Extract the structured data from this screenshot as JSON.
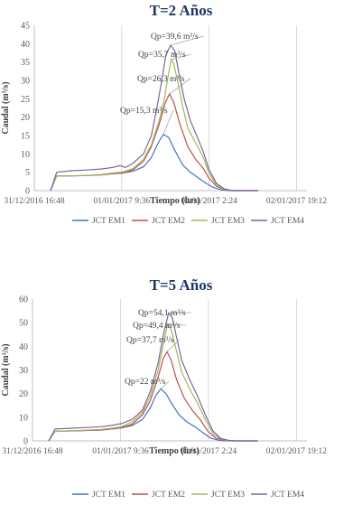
{
  "chart_data": [
    {
      "type": "line",
      "title": "T=2 Años",
      "xlabel": "Tiempo (hrs)",
      "ylabel": "Caudal (m³/s)",
      "ylim": [
        0,
        45
      ],
      "yticks": [
        0,
        5,
        10,
        15,
        20,
        25,
        30,
        35,
        40,
        45
      ],
      "xlim": [
        0,
        52.4
      ],
      "xticks": [
        {
          "x": 0,
          "label": "31/12/2016 16:48"
        },
        {
          "x": 16.8,
          "label": "01/01/2017 9:36"
        },
        {
          "x": 33.6,
          "label": "02/01/2017 2:24"
        },
        {
          "x": 50.4,
          "label": "02/01/2017 19:12"
        }
      ],
      "legend_position": "bottom",
      "grid": "vertical",
      "series": [
        {
          "name": "JCT EM1",
          "color": "#4472C4",
          "points": [
            [
              3.1,
              0
            ],
            [
              4.3,
              4
            ],
            [
              7,
              4
            ],
            [
              10,
              4.1
            ],
            [
              13,
              4.3
            ],
            [
              15,
              4.6
            ],
            [
              17,
              4.8
            ],
            [
              19,
              5.3
            ],
            [
              21,
              6.5
            ],
            [
              22.5,
              9
            ],
            [
              23.8,
              13
            ],
            [
              24.8,
              15.3
            ],
            [
              25.8,
              14.5
            ],
            [
              27,
              11
            ],
            [
              28.5,
              7
            ],
            [
              30,
              5
            ],
            [
              31.5,
              3.5
            ],
            [
              33,
              2
            ],
            [
              34.5,
              0.8
            ],
            [
              36,
              0.2
            ],
            [
              37.5,
              0
            ],
            [
              43,
              0
            ]
          ]
        },
        {
          "name": "JCT EM2",
          "color": "#C0504D",
          "points": [
            [
              3.1,
              0
            ],
            [
              4.3,
              4
            ],
            [
              7,
              4
            ],
            [
              10,
              4.1
            ],
            [
              13,
              4.3
            ],
            [
              15,
              4.6
            ],
            [
              17,
              4.8
            ],
            [
              19,
              5.7
            ],
            [
              21,
              8
            ],
            [
              22.5,
              12
            ],
            [
              24,
              18
            ],
            [
              25.2,
              24
            ],
            [
              26,
              26.3
            ],
            [
              26.8,
              24
            ],
            [
              28,
              18
            ],
            [
              29.5,
              12
            ],
            [
              31,
              8.5
            ],
            [
              32.5,
              6
            ],
            [
              33.5,
              3.5
            ],
            [
              35,
              1.2
            ],
            [
              36.5,
              0.3
            ],
            [
              38,
              0
            ],
            [
              43,
              0
            ]
          ]
        },
        {
          "name": "JCT EM3",
          "color": "#9BBB59",
          "points": [
            [
              3.1,
              0
            ],
            [
              4.3,
              4
            ],
            [
              7,
              4
            ],
            [
              10,
              4.1
            ],
            [
              13,
              4.4
            ],
            [
              15,
              4.8
            ],
            [
              17,
              5.1
            ],
            [
              19,
              6
            ],
            [
              21,
              8.5
            ],
            [
              22.5,
              12.5
            ],
            [
              24,
              19
            ],
            [
              25,
              25
            ],
            [
              25.7,
              31
            ],
            [
              26.3,
              35.7
            ],
            [
              26.8,
              34.5
            ],
            [
              27.5,
              30
            ],
            [
              28.5,
              23
            ],
            [
              29.5,
              17
            ],
            [
              31,
              13
            ],
            [
              32.5,
              9
            ],
            [
              33.5,
              5
            ],
            [
              35,
              1.5
            ],
            [
              36.5,
              0.4
            ],
            [
              38,
              0
            ],
            [
              43,
              0
            ]
          ]
        },
        {
          "name": "JCT EM4",
          "color": "#8064A2",
          "points": [
            [
              3.1,
              0
            ],
            [
              4.3,
              5
            ],
            [
              7,
              5.4
            ],
            [
              10,
              5.6
            ],
            [
              13,
              5.9
            ],
            [
              15,
              6.3
            ],
            [
              16.5,
              6.8
            ],
            [
              17.5,
              6.3
            ],
            [
              19,
              7.5
            ],
            [
              21,
              10
            ],
            [
              22.5,
              15
            ],
            [
              23.5,
              22
            ],
            [
              24.5,
              30
            ],
            [
              25.3,
              37
            ],
            [
              26.2,
              39.6
            ],
            [
              27,
              38
            ],
            [
              27.8,
              32
            ],
            [
              28.8,
              25
            ],
            [
              30,
              19
            ],
            [
              31.2,
              15
            ],
            [
              32.5,
              10.5
            ],
            [
              33.5,
              6
            ],
            [
              35,
              2
            ],
            [
              36.5,
              0.5
            ],
            [
              38,
              0
            ],
            [
              43,
              0
            ]
          ]
        }
      ],
      "annotations": [
        {
          "text": "Qp=39,6 m³/s",
          "x": 26.2,
          "y": 39.6
        },
        {
          "text": "Qp=35,7 m³/s",
          "x": 26.3,
          "y": 35.7
        },
        {
          "text": "Qp=26,3 m³/s",
          "x": 26,
          "y": 26.3
        },
        {
          "text": "Qp=15,3 m³/s",
          "x": 24.8,
          "y": 15.3
        }
      ]
    },
    {
      "type": "line",
      "title": "T=5 Años",
      "xlabel": "Tiempo (hrs)",
      "ylabel": "Caudal (m³/s)",
      "ylim": [
        0,
        60
      ],
      "yticks": [
        0,
        10,
        20,
        30,
        40,
        50,
        60
      ],
      "xlim": [
        0,
        52.4
      ],
      "xticks": [
        {
          "x": 0,
          "label": "31/12/2016 16:48"
        },
        {
          "x": 16.8,
          "label": "01/01/2017 9:36"
        },
        {
          "x": 33.6,
          "label": "02/01/2017 2:24"
        },
        {
          "x": 50.4,
          "label": "02/01/2017 19:12"
        }
      ],
      "legend_position": "bottom",
      "grid": "vertical",
      "series": [
        {
          "name": "JCT EM1",
          "color": "#4472C4",
          "points": [
            [
              3.1,
              0
            ],
            [
              4.3,
              4
            ],
            [
              7,
              4.2
            ],
            [
              10,
              4.4
            ],
            [
              13,
              4.6
            ],
            [
              15,
              5
            ],
            [
              17,
              5.5
            ],
            [
              19,
              6.5
            ],
            [
              21,
              9
            ],
            [
              22.5,
              14
            ],
            [
              23.5,
              19
            ],
            [
              24.5,
              22
            ],
            [
              25.5,
              20
            ],
            [
              26.5,
              16
            ],
            [
              28,
              11
            ],
            [
              29.5,
              8
            ],
            [
              31,
              6
            ],
            [
              32.5,
              3.5
            ],
            [
              34,
              1.2
            ],
            [
              35.5,
              0.3
            ],
            [
              37,
              0
            ],
            [
              43,
              0
            ]
          ]
        },
        {
          "name": "JCT EM2",
          "color": "#C0504D",
          "points": [
            [
              3.1,
              0
            ],
            [
              4.3,
              4
            ],
            [
              7,
              4.2
            ],
            [
              10,
              4.4
            ],
            [
              13,
              4.6
            ],
            [
              15,
              5
            ],
            [
              17,
              5.6
            ],
            [
              19,
              7
            ],
            [
              21,
              11
            ],
            [
              22.5,
              17
            ],
            [
              24,
              27
            ],
            [
              25,
              35
            ],
            [
              25.7,
              37.7
            ],
            [
              26.5,
              34
            ],
            [
              27.5,
              26
            ],
            [
              29,
              18
            ],
            [
              30.5,
              13
            ],
            [
              32,
              9
            ],
            [
              33.5,
              4
            ],
            [
              35,
              1.2
            ],
            [
              36.5,
              0.3
            ],
            [
              38,
              0
            ],
            [
              43,
              0
            ]
          ]
        },
        {
          "name": "JCT EM3",
          "color": "#9BBB59",
          "points": [
            [
              3.1,
              0
            ],
            [
              4.3,
              4
            ],
            [
              7,
              4.2
            ],
            [
              10,
              4.5
            ],
            [
              13,
              4.8
            ],
            [
              15,
              5.3
            ],
            [
              17,
              6
            ],
            [
              19,
              8
            ],
            [
              21,
              12
            ],
            [
              22.5,
              19
            ],
            [
              24,
              30
            ],
            [
              25,
              41
            ],
            [
              25.8,
              49.4
            ],
            [
              26.5,
              47
            ],
            [
              27.5,
              38
            ],
            [
              28.5,
              29
            ],
            [
              30,
              22
            ],
            [
              31.5,
              16
            ],
            [
              33,
              9
            ],
            [
              34.5,
              3
            ],
            [
              36,
              0.8
            ],
            [
              37.5,
              0
            ],
            [
              43,
              0
            ]
          ]
        },
        {
          "name": "JCT EM4",
          "color": "#8064A2",
          "points": [
            [
              3.1,
              0
            ],
            [
              4.3,
              5
            ],
            [
              7,
              5.3
            ],
            [
              10,
              5.6
            ],
            [
              13,
              6
            ],
            [
              15,
              6.5
            ],
            [
              17,
              7.3
            ],
            [
              19,
              9
            ],
            [
              21,
              13
            ],
            [
              22.5,
              21
            ],
            [
              24,
              33
            ],
            [
              25,
              45
            ],
            [
              26,
              54.1
            ],
            [
              26.7,
              52
            ],
            [
              27.5,
              44
            ],
            [
              28.5,
              34
            ],
            [
              30,
              26
            ],
            [
              31.5,
              19
            ],
            [
              33,
              11
            ],
            [
              34.5,
              4
            ],
            [
              36,
              1
            ],
            [
              37.5,
              0.2
            ],
            [
              39,
              0
            ],
            [
              43,
              0
            ]
          ]
        }
      ],
      "annotations": [
        {
          "text": "Qp=54,1 m³/s",
          "x": 26,
          "y": 54.1
        },
        {
          "text": "Qp=49,4 m³/s",
          "x": 25.8,
          "y": 49.4
        },
        {
          "text": "Qp=37,7 m³/s",
          "x": 25.7,
          "y": 37.7
        },
        {
          "text": "Qp=22 m³/s",
          "x": 24.5,
          "y": 22
        }
      ]
    }
  ]
}
